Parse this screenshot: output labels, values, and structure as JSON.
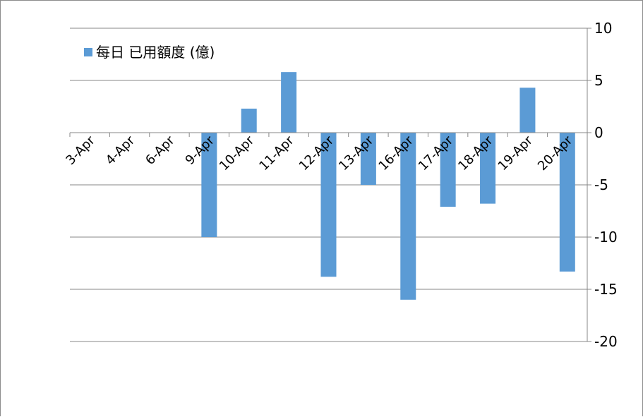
{
  "chart_data": {
    "type": "bar",
    "categories": [
      "3-Apr",
      "4-Apr",
      "6-Apr",
      "9-Apr",
      "10-Apr",
      "11-Apr",
      "12-Apr",
      "13-Apr",
      "16-Apr",
      "17-Apr",
      "18-Apr",
      "19-Apr",
      "20-Apr"
    ],
    "series": [
      {
        "name": "每日 已用額度 (億)",
        "values": [
          0,
          0,
          0,
          -10.0,
          2.3,
          5.8,
          -13.8,
          -5.0,
          -16.0,
          -7.1,
          -6.8,
          4.3,
          -13.3
        ]
      }
    ],
    "ylim": [
      -20,
      10
    ],
    "yticks": [
      "10",
      "5",
      "0",
      "-5",
      "-10",
      "-15",
      "-20"
    ],
    "y_axis_side": "right",
    "grid": true,
    "legend_position": "top-left",
    "colors": {
      "series": "#5b9bd5",
      "grid": "#878787"
    }
  }
}
